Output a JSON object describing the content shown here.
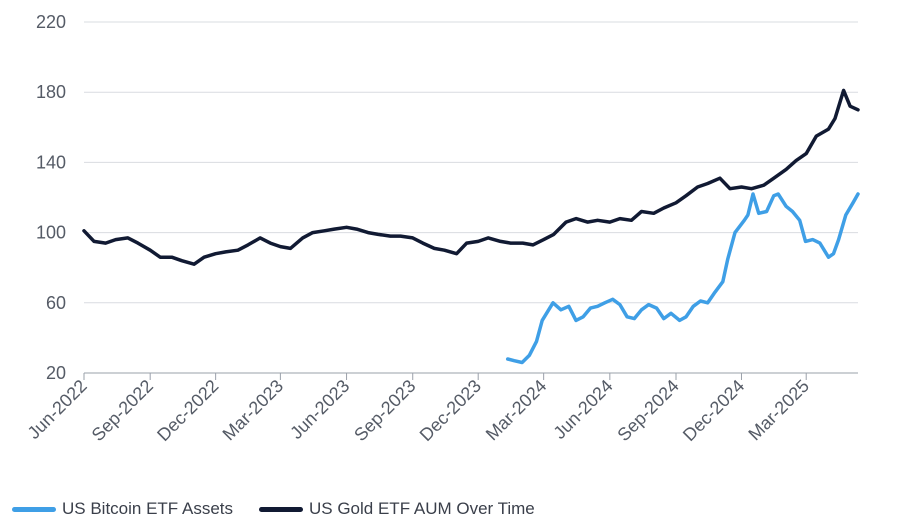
{
  "chart_data": {
    "type": "line",
    "title": "",
    "xlabel": "",
    "ylabel": "",
    "ylim": [
      20,
      220
    ],
    "yticks": [
      20,
      60,
      100,
      140,
      180,
      220
    ],
    "xticks": [
      "Jun-2022",
      "Sep-2022",
      "Dec-2022",
      "Mar-2023",
      "Jun-2023",
      "Sep-2023",
      "Dec-2023",
      "Mar-2024",
      "Jun-2024",
      "Sep-2024",
      "Dec-2024",
      "Mar-2025"
    ],
    "grid": "horizontal",
    "legend_position": "bottom-left",
    "series": [
      {
        "name": "US Bitcoin ETF Assets",
        "color": "#3f9fe6",
        "x": [
          "2024-01-11",
          "2024-01-20",
          "2024-01-31",
          "2024-02-10",
          "2024-02-20",
          "2024-02-28",
          "2024-03-08",
          "2024-03-14",
          "2024-03-25",
          "2024-04-05",
          "2024-04-15",
          "2024-04-25",
          "2024-05-05",
          "2024-05-15",
          "2024-05-25",
          "2024-06-05",
          "2024-06-15",
          "2024-06-25",
          "2024-07-05",
          "2024-07-15",
          "2024-07-25",
          "2024-08-05",
          "2024-08-15",
          "2024-08-25",
          "2024-09-06",
          "2024-09-15",
          "2024-09-25",
          "2024-10-05",
          "2024-10-15",
          "2024-10-25",
          "2024-11-05",
          "2024-11-12",
          "2024-11-22",
          "2024-12-05",
          "2024-12-10",
          "2024-12-17",
          "2024-12-25",
          "2025-01-05",
          "2025-01-15",
          "2025-01-21",
          "2025-02-01",
          "2025-02-10",
          "2025-02-20",
          "2025-02-28",
          "2025-03-10",
          "2025-03-20",
          "2025-04-01",
          "2025-04-08",
          "2025-04-15",
          "2025-04-25",
          "2025-05-05",
          "2025-05-12"
        ],
        "values": [
          28,
          27,
          26,
          30,
          38,
          50,
          56,
          60,
          56,
          58,
          50,
          52,
          57,
          58,
          60,
          62,
          59,
          52,
          51,
          56,
          59,
          57,
          51,
          54,
          50,
          52,
          58,
          61,
          60,
          66,
          72,
          85,
          100,
          107,
          110,
          122,
          111,
          112,
          121,
          122,
          115,
          112,
          107,
          95,
          96,
          94,
          86,
          88,
          96,
          110,
          117,
          122
        ]
      },
      {
        "name": "US Gold ETF AUM Over Time",
        "color": "#111a33",
        "x": [
          "2022-06-01",
          "2022-06-15",
          "2022-07-01",
          "2022-07-15",
          "2022-08-01",
          "2022-08-15",
          "2022-09-01",
          "2022-09-15",
          "2022-10-01",
          "2022-10-15",
          "2022-11-01",
          "2022-11-15",
          "2022-12-01",
          "2022-12-15",
          "2023-01-01",
          "2023-01-15",
          "2023-02-01",
          "2023-02-15",
          "2023-03-01",
          "2023-03-15",
          "2023-04-01",
          "2023-04-15",
          "2023-05-01",
          "2023-05-15",
          "2023-06-01",
          "2023-06-15",
          "2023-07-01",
          "2023-07-15",
          "2023-08-01",
          "2023-08-15",
          "2023-09-01",
          "2023-09-15",
          "2023-10-01",
          "2023-10-15",
          "2023-11-01",
          "2023-11-15",
          "2023-12-01",
          "2023-12-15",
          "2024-01-01",
          "2024-01-15",
          "2024-02-01",
          "2024-02-15",
          "2024-03-01",
          "2024-03-15",
          "2024-04-01",
          "2024-04-15",
          "2024-05-01",
          "2024-05-15",
          "2024-06-01",
          "2024-06-15",
          "2024-07-01",
          "2024-07-15",
          "2024-08-01",
          "2024-08-15",
          "2024-09-01",
          "2024-09-15",
          "2024-10-01",
          "2024-10-15",
          "2024-11-01",
          "2024-11-15",
          "2024-12-01",
          "2024-12-15",
          "2025-01-01",
          "2025-01-15",
          "2025-02-01",
          "2025-02-15",
          "2025-03-01",
          "2025-03-15",
          "2025-04-01",
          "2025-04-10",
          "2025-04-22",
          "2025-05-01",
          "2025-05-12"
        ],
        "values": [
          101,
          95,
          94,
          96,
          97,
          94,
          90,
          86,
          86,
          84,
          82,
          86,
          88,
          89,
          90,
          93,
          97,
          94,
          92,
          91,
          97,
          100,
          101,
          102,
          103,
          102,
          100,
          99,
          98,
          98,
          97,
          94,
          91,
          90,
          88,
          94,
          95,
          97,
          95,
          94,
          94,
          93,
          96,
          99,
          106,
          108,
          106,
          107,
          106,
          108,
          107,
          112,
          111,
          114,
          117,
          121,
          126,
          128,
          131,
          125,
          126,
          125,
          127,
          131,
          136,
          141,
          145,
          155,
          159,
          165,
          181,
          172,
          170
        ]
      }
    ]
  }
}
